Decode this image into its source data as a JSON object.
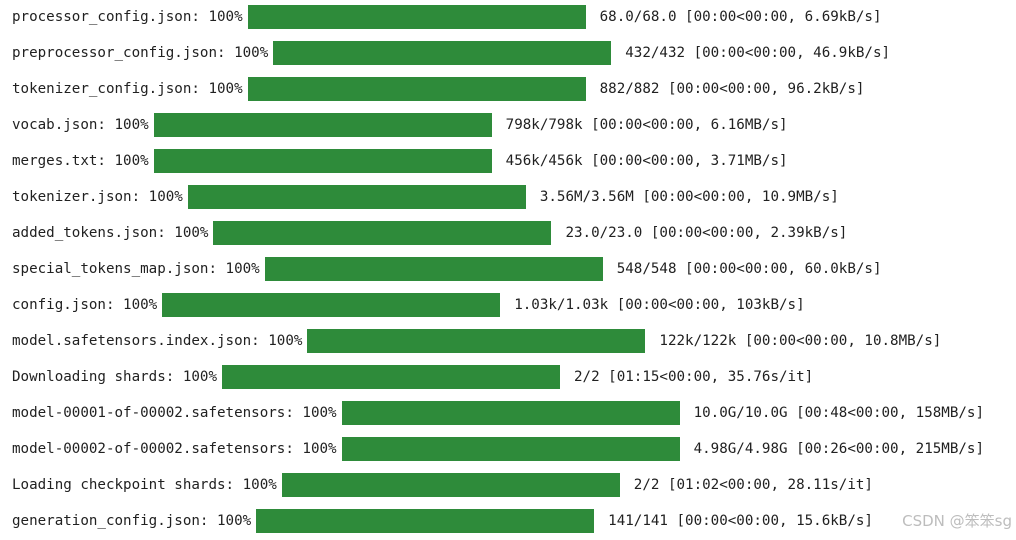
{
  "colors": {
    "bar_fill": "#2e8b3a",
    "bar_track": "#e8e8e8",
    "text": "#212121"
  },
  "rows": [
    {
      "label": "processor_config.json: 100%",
      "progress": 1.0,
      "stats": "68.0/68.0 [00:00<00:00, 6.69kB/s]"
    },
    {
      "label": "preprocessor_config.json: 100%",
      "progress": 1.0,
      "stats": "432/432 [00:00<00:00, 46.9kB/s]"
    },
    {
      "label": "tokenizer_config.json: 100%",
      "progress": 1.0,
      "stats": "882/882 [00:00<00:00, 96.2kB/s]"
    },
    {
      "label": "vocab.json: 100%",
      "progress": 1.0,
      "stats": "798k/798k [00:00<00:00, 6.16MB/s]"
    },
    {
      "label": "merges.txt: 100%",
      "progress": 1.0,
      "stats": "456k/456k [00:00<00:00, 3.71MB/s]"
    },
    {
      "label": "tokenizer.json: 100%",
      "progress": 1.0,
      "stats": "3.56M/3.56M [00:00<00:00, 10.9MB/s]"
    },
    {
      "label": "added_tokens.json: 100%",
      "progress": 1.0,
      "stats": "23.0/23.0 [00:00<00:00, 2.39kB/s]"
    },
    {
      "label": "special_tokens_map.json: 100%",
      "progress": 1.0,
      "stats": "548/548 [00:00<00:00, 60.0kB/s]"
    },
    {
      "label": "config.json: 100%",
      "progress": 1.0,
      "stats": "1.03k/1.03k [00:00<00:00, 103kB/s]"
    },
    {
      "label": "model.safetensors.index.json: 100%",
      "progress": 1.0,
      "stats": "122k/122k [00:00<00:00, 10.8MB/s]"
    },
    {
      "label": "Downloading shards: 100%",
      "progress": 1.0,
      "stats": "2/2 [01:15<00:00, 35.76s/it]"
    },
    {
      "label": "model-00001-of-00002.safetensors: 100%",
      "progress": 1.0,
      "stats": "10.0G/10.0G [00:48<00:00, 158MB/s]"
    },
    {
      "label": "model-00002-of-00002.safetensors: 100%",
      "progress": 1.0,
      "stats": "4.98G/4.98G [00:26<00:00, 215MB/s]"
    },
    {
      "label": "Loading checkpoint shards: 100%",
      "progress": 1.0,
      "stats": "2/2 [01:02<00:00, 28.11s/it]"
    },
    {
      "label": "generation_config.json: 100%",
      "progress": 1.0,
      "stats": "141/141 [00:00<00:00, 15.6kB/s]"
    }
  ],
  "watermark": "CSDN @笨笨sg"
}
